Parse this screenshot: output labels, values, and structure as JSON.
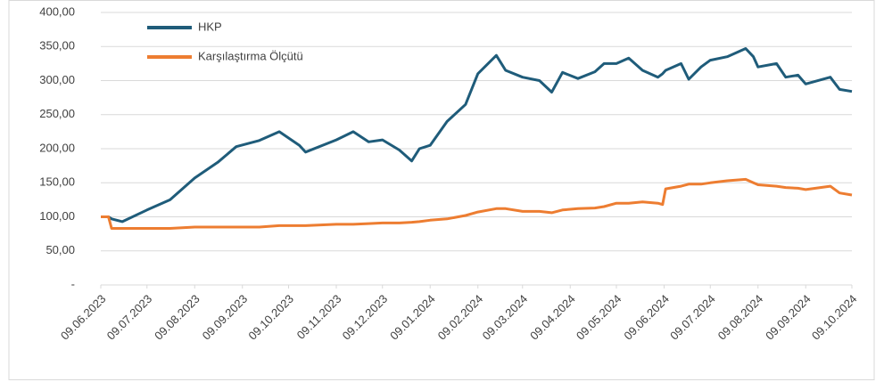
{
  "chart_data": {
    "type": "line",
    "x": [
      "2023-06-09",
      "2023-06-14",
      "2023-06-16",
      "2023-06-23",
      "2023-07-09",
      "2023-07-24",
      "2023-08-09",
      "2023-08-24",
      "2023-09-05",
      "2023-09-20",
      "2023-10-03",
      "2023-10-16",
      "2023-10-20",
      "2023-11-09",
      "2023-11-20",
      "2023-11-30",
      "2023-12-09",
      "2023-12-20",
      "2023-12-28",
      "2024-01-02",
      "2024-01-09",
      "2024-01-20",
      "2024-02-01",
      "2024-02-09",
      "2024-02-21",
      "2024-02-27",
      "2024-03-09",
      "2024-03-20",
      "2024-03-28",
      "2024-04-04",
      "2024-04-14",
      "2024-04-25",
      "2024-05-01",
      "2024-05-09",
      "2024-05-17",
      "2024-05-26",
      "2024-06-05",
      "2024-06-08",
      "2024-06-10",
      "2024-06-20",
      "2024-06-25",
      "2024-07-03",
      "2024-07-09",
      "2024-07-20",
      "2024-08-01",
      "2024-08-06",
      "2024-08-09",
      "2024-08-21",
      "2024-08-27",
      "2024-09-04",
      "2024-09-09",
      "2024-09-25",
      "2024-10-01",
      "2024-10-09"
    ],
    "series": [
      {
        "name": "HKP",
        "color": "#1f5c7a",
        "values": [
          100,
          100,
          97,
          93,
          110,
          125,
          157,
          180,
          203,
          212,
          225,
          205,
          195,
          213,
          225,
          210,
          213,
          198,
          182,
          200,
          205,
          240,
          265,
          310,
          337,
          315,
          305,
          300,
          283,
          312,
          303,
          313,
          325,
          325,
          333,
          315,
          305,
          310,
          315,
          325,
          302,
          320,
          330,
          335,
          347,
          335,
          320,
          325,
          305,
          308,
          295,
          305,
          287,
          284
        ]
      },
      {
        "name": "Karşılaştırma Ölçütü",
        "color": "#ed7d31",
        "values": [
          100,
          100,
          83,
          83,
          83,
          83,
          85,
          85,
          85,
          85,
          87,
          87,
          87,
          89,
          89,
          90,
          91,
          91,
          92,
          93,
          95,
          97,
          102,
          107,
          112,
          112,
          108,
          108,
          106,
          110,
          112,
          113,
          115,
          120,
          120,
          122,
          120,
          118,
          141,
          145,
          148,
          148,
          150,
          153,
          155,
          150,
          147,
          145,
          143,
          142,
          140,
          145,
          135,
          132
        ]
      }
    ],
    "xlim": [
      "2023-06-09",
      "2024-10-09"
    ],
    "xticks": [
      {
        "value": "2023-06-09",
        "label": "09.06.2023"
      },
      {
        "value": "2023-07-09",
        "label": "09.07.2023"
      },
      {
        "value": "2023-08-09",
        "label": "09.08.2023"
      },
      {
        "value": "2023-09-09",
        "label": "09.09.2023"
      },
      {
        "value": "2023-10-09",
        "label": "09.10.2023"
      },
      {
        "value": "2023-11-09",
        "label": "09.11.2023"
      },
      {
        "value": "2023-12-09",
        "label": "09.12.2023"
      },
      {
        "value": "2024-01-09",
        "label": "09.01.2024"
      },
      {
        "value": "2024-02-09",
        "label": "09.02.2024"
      },
      {
        "value": "2024-03-09",
        "label": "09.03.2024"
      },
      {
        "value": "2024-04-09",
        "label": "09.04.2024"
      },
      {
        "value": "2024-05-09",
        "label": "09.05.2024"
      },
      {
        "value": "2024-06-09",
        "label": "09.06.2024"
      },
      {
        "value": "2024-07-09",
        "label": "09.07.2024"
      },
      {
        "value": "2024-08-09",
        "label": "09.08.2024"
      },
      {
        "value": "2024-09-09",
        "label": "09.09.2024"
      },
      {
        "value": "2024-10-09",
        "label": "09.10.2024"
      }
    ],
    "ylim": [
      0,
      400
    ],
    "yticks": [
      {
        "value": 0,
        "label": "-"
      },
      {
        "value": 50,
        "label": "50,00"
      },
      {
        "value": 100,
        "label": "100,00"
      },
      {
        "value": 150,
        "label": "150,00"
      },
      {
        "value": 200,
        "label": "200,00"
      },
      {
        "value": 250,
        "label": "250,00"
      },
      {
        "value": 300,
        "label": "300,00"
      },
      {
        "value": 350,
        "label": "350,00"
      },
      {
        "value": 400,
        "label": "400,00"
      }
    ],
    "grid": true,
    "legend": "top-left"
  }
}
